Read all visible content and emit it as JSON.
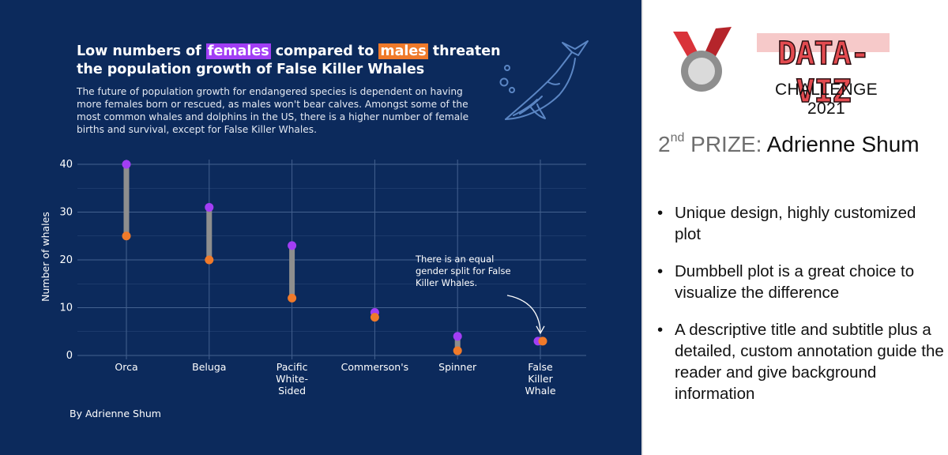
{
  "chart_data": {
    "type": "dumbbell",
    "title_parts": [
      "Low numbers of ",
      "females",
      " compared to ",
      "males",
      " threaten the population growth of False Killer Whales"
    ],
    "subtitle": "The future of population growth for endangered species is dependent on having more females born or rescued, as males won't bear calves. Amongst some of the most common whales and dolphins in the US, there is a higher number of female births and survival, except for False Killer Whales.",
    "ylabel": "Number of whales",
    "ylim": [
      0,
      40
    ],
    "yticks": [
      0,
      10,
      20,
      30,
      40
    ],
    "categories": [
      [
        "Orca"
      ],
      [
        "Beluga"
      ],
      [
        "Pacific",
        "White-",
        "Sided"
      ],
      [
        "Commerson's"
      ],
      [
        "Spinner"
      ],
      [
        "False",
        "Killer",
        "Whale"
      ]
    ],
    "series": [
      {
        "name": "females",
        "color": "#a23ef5",
        "values": [
          40,
          31,
          23,
          9,
          4,
          3
        ]
      },
      {
        "name": "males",
        "color": "#f07a2a",
        "values": [
          25,
          20,
          12,
          8,
          1,
          3
        ]
      }
    ],
    "connector_color": "#8e8e8e",
    "annotation": [
      "There is an equal",
      "gender split for False",
      "Killer Whales."
    ],
    "grid": true,
    "byline": "By Adrienne Shum"
  },
  "colors": {
    "panel_bg": "#0c2a5c",
    "female": "#a23ef5",
    "male": "#f07a2a",
    "grid": "#44618f"
  },
  "icons": {
    "whale": "whale-icon",
    "medal": "medal-icon"
  },
  "sidebar": {
    "logo_text": "DATA-VIZ",
    "challenge": "CHALLENGE 2021",
    "prize_number": "2",
    "prize_suffix": "nd",
    "prize_word": "PRIZE:",
    "winner": "Adrienne Shum",
    "bullets": [
      "Unique design, highly customized plot",
      "Dumbbell plot is a great choice to visualize the difference",
      "A descriptive title and subtitle plus a detailed, custom annotation guide the reader and give background information"
    ]
  }
}
